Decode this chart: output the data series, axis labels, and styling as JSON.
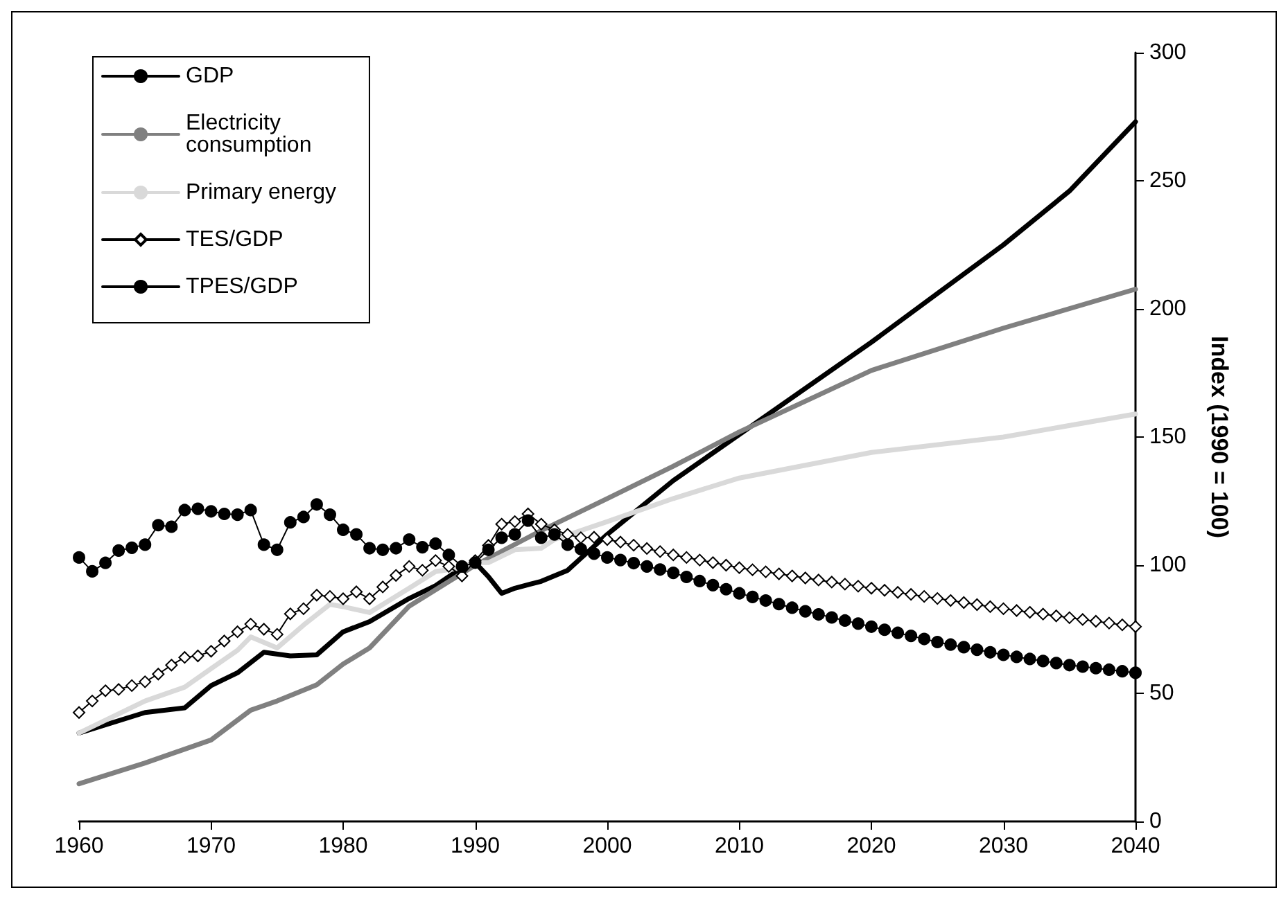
{
  "chart_data": {
    "type": "line",
    "ylabel": "Index (1990 = 100)",
    "legend": "top left",
    "grid": false,
    "x": [
      1960,
      1961,
      1962,
      1963,
      1964,
      1965,
      1966,
      1967,
      1968,
      1969,
      1970,
      1971,
      1972,
      1973,
      1974,
      1975,
      1976,
      1977,
      1978,
      1979,
      1980,
      1981,
      1982,
      1983,
      1984,
      1985,
      1986,
      1987,
      1988,
      1989,
      1990,
      1991,
      1992,
      1993,
      1994,
      1995,
      1996,
      1997,
      1998,
      1999,
      2000,
      2001,
      2002,
      2003,
      2004,
      2005,
      2006,
      2007,
      2008,
      2009,
      2010,
      2011,
      2012,
      2013,
      2014,
      2015,
      2016,
      2017,
      2018,
      2019,
      2020,
      2021,
      2022,
      2023,
      2024,
      2025,
      2026,
      2027,
      2028,
      2029,
      2030,
      2031,
      2032,
      2033,
      2034,
      2035,
      2036,
      2037,
      2038,
      2039,
      2040
    ],
    "xlim": [
      1960,
      2040
    ],
    "xticks": [
      1960,
      1970,
      1980,
      1990,
      2000,
      2010,
      2020,
      2030,
      2040
    ],
    "ylim": [
      0,
      300
    ],
    "yticks": [
      0,
      50,
      100,
      150,
      200,
      250,
      300
    ],
    "series": [
      {
        "name": "GDP",
        "color": "#000000",
        "marker": "none",
        "x": [
          1960,
          1965,
          1968,
          1970,
          1972,
          1974,
          1976,
          1978,
          1980,
          1982,
          1985,
          1987,
          1989,
          1990,
          1991,
          1992,
          1993,
          1995,
          1997,
          1998,
          2000,
          2005,
          2010,
          2020,
          2025,
          2030,
          2035,
          2040
        ],
        "values": [
          34.5,
          42.5,
          44.3,
          53,
          58,
          66,
          64.6,
          65,
          74,
          78,
          87,
          92,
          99,
          101,
          95.5,
          89,
          91,
          93.7,
          98,
          102.7,
          112,
          133,
          151,
          187,
          206,
          225,
          246,
          273
        ]
      },
      {
        "name": "Electricity consumption",
        "color": "#808080",
        "marker": "none",
        "x": [
          1960,
          1965,
          1970,
          1973,
          1975,
          1978,
          1980,
          1982,
          1985,
          1990,
          1995,
          2000,
          2005,
          2010,
          2020,
          2030,
          2040
        ],
        "values": [
          14.7,
          22.8,
          31.8,
          43.4,
          47,
          53.3,
          61.4,
          67.7,
          84,
          100,
          113.5,
          126,
          138.6,
          152,
          176,
          192.5,
          207.7
        ]
      },
      {
        "name": "Primary energy",
        "color": "#d9d9d9",
        "marker": "none",
        "x": [
          1960,
          1965,
          1968,
          1970,
          1972,
          1973,
          1975,
          1977,
          1979,
          1980,
          1982,
          1985,
          1987,
          1989,
          1990,
          1991,
          1993,
          1995,
          1996,
          2000,
          2005,
          2010,
          2020,
          2030,
          2040
        ],
        "values": [
          34.5,
          47,
          52.4,
          59.6,
          66.8,
          72,
          67.7,
          76.6,
          84.7,
          83.8,
          81.5,
          91,
          97.5,
          99,
          101,
          101,
          106,
          106.6,
          110,
          117,
          126,
          134,
          144,
          150,
          159
        ]
      },
      {
        "name": "TES/GDP",
        "color": "#000000",
        "marker": "diamond",
        "values": [
          42.5,
          47,
          51,
          51.5,
          53,
          54.5,
          57.5,
          61,
          64,
          64.6,
          66.4,
          70.4,
          74,
          77,
          75,
          73,
          81,
          83,
          88.3,
          87.8,
          86.9,
          89.6,
          86.9,
          91.5,
          96,
          99.5,
          98,
          101.8,
          99.5,
          95.8,
          101.8,
          107.7,
          116,
          117,
          120,
          116,
          113.8,
          112,
          110.7,
          110.9,
          110,
          109,
          107.8,
          106.5,
          105.3,
          104,
          103,
          102,
          101,
          100,
          99,
          98.2,
          97.4,
          96.6,
          95.8,
          95,
          94.2,
          93.4,
          92.6,
          91.8,
          91,
          90.2,
          89.4,
          88.6,
          87.8,
          87,
          86.2,
          85.4,
          84.6,
          83.8,
          83,
          82.3,
          81.6,
          80.9,
          80.2,
          79.5,
          78.8,
          78.1,
          77.4,
          76.7,
          76
        ]
      },
      {
        "name": "TPES/GDP",
        "color": "#000000",
        "marker": "circle",
        "values": [
          103,
          97.6,
          100.9,
          105.7,
          106.8,
          108,
          115.6,
          115,
          121.5,
          122,
          121,
          120,
          119.7,
          121.5,
          108,
          106,
          116.7,
          118.8,
          123.7,
          119.7,
          113.8,
          112,
          106.6,
          106,
          106.6,
          110,
          107,
          108.4,
          104,
          99.5,
          101,
          106,
          110.7,
          112,
          117.4,
          110.7,
          112,
          108,
          106.3,
          104.5,
          103,
          102,
          100.8,
          99.5,
          98.3,
          97,
          95.4,
          93.8,
          92.2,
          90.6,
          89,
          87.6,
          86.2,
          84.8,
          83.4,
          82,
          80.8,
          79.6,
          78.4,
          77.2,
          76,
          74.8,
          73.6,
          72.4,
          71.2,
          70,
          69,
          68,
          67,
          66,
          65,
          64.2,
          63.4,
          62.6,
          61.8,
          61,
          60.4,
          59.8,
          59.2,
          58.6,
          58
        ]
      }
    ]
  }
}
